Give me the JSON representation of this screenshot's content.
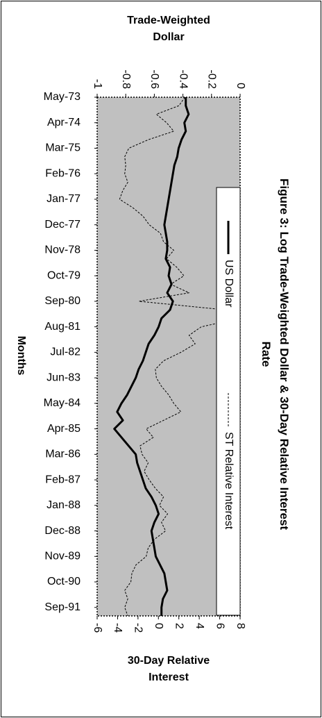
{
  "chart_data": {
    "type": "line",
    "title": "Figure 3: Log Trade-Weighted Dollar & 30-Day Relative Interest Rate",
    "xlabel": "Months",
    "ylabel": "Trade-Weighted Dollar",
    "y2label": "30-Day Relative Interest",
    "categories": [
      "May-73",
      null,
      null,
      "Apr-74",
      null,
      null,
      "Mar-75",
      null,
      null,
      "Feb-76",
      null,
      null,
      "Jan-77",
      null,
      null,
      "Dec-77",
      null,
      null,
      "Nov-78",
      null,
      null,
      "Oct-79",
      null,
      null,
      "Sep-80",
      null,
      null,
      "Aug-81",
      null,
      null,
      "Jul-82",
      null,
      null,
      "Jun-83",
      null,
      null,
      "May-84",
      null,
      null,
      "Apr-85",
      null,
      null,
      "Mar-86",
      null,
      null,
      "Feb-87",
      null,
      null,
      "Jan-88",
      null,
      null,
      "Dec-88",
      null,
      null,
      "Nov-89",
      null,
      null,
      "Oct-90",
      null,
      null,
      "Sep-91",
      null
    ],
    "series": [
      {
        "name": "US Dollar",
        "color": "#000000",
        "style": "solid",
        "values": [
          -0.38,
          -0.38,
          -0.36,
          -0.39,
          -0.38,
          -0.41,
          -0.43,
          -0.44,
          -0.46,
          -0.47,
          -0.48,
          -0.49,
          -0.5,
          -0.51,
          -0.52,
          -0.53,
          -0.52,
          -0.51,
          -0.51,
          -0.52,
          -0.49,
          -0.5,
          -0.48,
          -0.51,
          -0.47,
          -0.49,
          -0.55,
          -0.57,
          -0.6,
          -0.64,
          -0.66,
          -0.68,
          -0.71,
          -0.73,
          -0.76,
          -0.79,
          -0.83,
          -0.86,
          -0.82,
          -0.88,
          -0.83,
          -0.78,
          -0.73,
          -0.72,
          -0.7,
          -0.68,
          -0.66,
          -0.62,
          -0.59,
          -0.57,
          -0.6,
          -0.62,
          -0.61,
          -0.6,
          -0.59,
          -0.56,
          -0.53,
          -0.52,
          -0.51,
          -0.54,
          -0.55,
          -0.55
        ]
      },
      {
        "name": "ST Relative Interest",
        "color": "#000000",
        "style": "dashed",
        "axis": "y2",
        "values": [
          2.6,
          2.0,
          -0.2,
          0.8,
          1.5,
          -1.0,
          -2.9,
          -3.3,
          -3.2,
          -3.3,
          -3.0,
          -3.5,
          -3.8,
          -2.5,
          -1.5,
          -0.9,
          0.2,
          0.5,
          1.5,
          0.8,
          1.8,
          2.5,
          1.2,
          3.0,
          -1.9,
          6.5,
          8.0,
          4.2,
          3.0,
          3.6,
          2.2,
          0.5,
          -0.3,
          -0.2,
          0.3,
          1.0,
          1.5,
          2.2,
          0.5,
          -1.2,
          -0.5,
          -1.8,
          -1.6,
          -1.0,
          -1.4,
          -0.9,
          -0.3,
          0.5,
          0.1,
          0.9,
          0.3,
          0.7,
          -0.4,
          -1.0,
          -1.2,
          -2.2,
          -2.6,
          -2.7,
          -3.3,
          -3.0,
          -3.3,
          -3.0
        ]
      }
    ],
    "ylim": [
      -1,
      0
    ],
    "yticks": [
      -1,
      -0.8,
      -0.6,
      -0.4,
      -0.2,
      0
    ],
    "y2lim": [
      -6,
      8
    ],
    "y2ticks": [
      -6,
      -4,
      -2,
      0,
      2,
      4,
      6,
      8
    ],
    "plot_background": "#c0c0c0",
    "legend": "right"
  }
}
